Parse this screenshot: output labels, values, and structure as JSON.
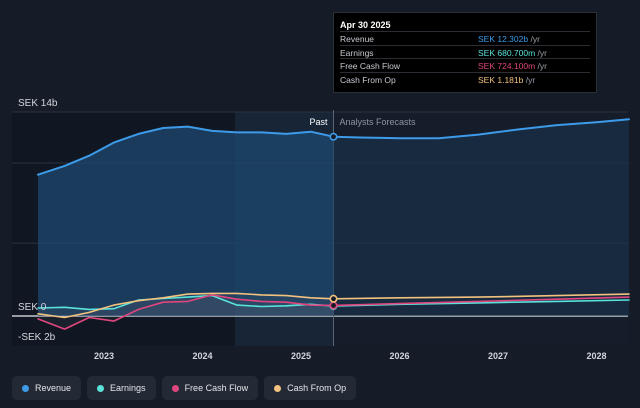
{
  "chart_data": {
    "type": "line",
    "y_axis_top_label": "SEK 14b",
    "y_axis_zero_label": "SEK 0",
    "y_axis_bottom_label": "-SEK 2b",
    "ylim": [
      -2,
      14
    ],
    "x_ticks": [
      "2023",
      "2024",
      "2025",
      "2026",
      "2027",
      "2028"
    ],
    "past_label": "Past",
    "forecast_label": "Analysts Forecasts",
    "divider_date": 2025.33,
    "highlight_start": 2024.33,
    "series": [
      {
        "name": "Revenue",
        "color": "#3d9be9",
        "x": [
          2022.33,
          2022.6,
          2022.85,
          2023.1,
          2023.35,
          2023.6,
          2023.85,
          2024.1,
          2024.35,
          2024.6,
          2024.85,
          2025.1,
          2025.33
        ],
        "y": [
          9.7,
          10.3,
          11.0,
          11.9,
          12.5,
          12.9,
          13.0,
          12.7,
          12.6,
          12.6,
          12.5,
          12.65,
          12.302
        ]
      },
      {
        "name": "Revenue forecast",
        "color": "#3d9be9",
        "forecast": true,
        "x": [
          2025.33,
          2025.6,
          2026.0,
          2026.4,
          2026.8,
          2027.2,
          2027.6,
          2028.0,
          2028.33
        ],
        "y": [
          12.302,
          12.25,
          12.2,
          12.2,
          12.45,
          12.8,
          13.1,
          13.3,
          13.5
        ]
      },
      {
        "name": "Earnings",
        "color": "#5ae3da",
        "x": [
          2022.33,
          2022.6,
          2022.85,
          2023.1,
          2023.35,
          2023.6,
          2023.85,
          2024.1,
          2024.35,
          2024.6,
          2024.85,
          2025.1,
          2025.33
        ],
        "y": [
          0.55,
          0.6,
          0.45,
          0.5,
          1.1,
          1.2,
          1.3,
          1.4,
          0.75,
          0.65,
          0.7,
          0.8,
          0.6807
        ]
      },
      {
        "name": "Earnings forecast",
        "color": "#5ae3da",
        "forecast": true,
        "x": [
          2025.33,
          2026.0,
          2026.8,
          2027.6,
          2028.33
        ],
        "y": [
          0.6807,
          0.8,
          0.9,
          1.0,
          1.1
        ]
      },
      {
        "name": "Free Cash Flow",
        "color": "#e0467e",
        "x": [
          2022.33,
          2022.6,
          2022.85,
          2023.1,
          2023.35,
          2023.6,
          2023.85,
          2024.1,
          2024.35,
          2024.6,
          2024.85,
          2025.1,
          2025.33
        ],
        "y": [
          -0.2,
          -0.9,
          -0.1,
          -0.35,
          0.45,
          0.95,
          1.0,
          1.45,
          1.15,
          1.0,
          0.95,
          0.75,
          0.7241
        ]
      },
      {
        "name": "Free Cash Flow forecast",
        "color": "#e0467e",
        "forecast": true,
        "x": [
          2025.33,
          2026.0,
          2026.8,
          2027.6,
          2028.33
        ],
        "y": [
          0.7241,
          0.85,
          1.0,
          1.15,
          1.3
        ]
      },
      {
        "name": "Cash From Op",
        "color": "#f2c27e",
        "x": [
          2022.33,
          2022.6,
          2022.85,
          2023.1,
          2023.35,
          2023.6,
          2023.85,
          2024.1,
          2024.35,
          2024.6,
          2024.85,
          2025.1,
          2025.33
        ],
        "y": [
          0.15,
          -0.1,
          0.25,
          0.75,
          1.05,
          1.25,
          1.5,
          1.55,
          1.55,
          1.45,
          1.4,
          1.25,
          1.181
        ]
      },
      {
        "name": "Cash From Op forecast",
        "color": "#f2c27e",
        "forecast": true,
        "x": [
          2025.33,
          2026.0,
          2026.8,
          2027.6,
          2028.33
        ],
        "y": [
          1.181,
          1.25,
          1.3,
          1.4,
          1.5
        ]
      }
    ]
  },
  "tooltip": {
    "date": "Apr 30 2025",
    "rows": [
      {
        "name": "Revenue",
        "value": "SEK 12.302b",
        "unit": "/yr",
        "color": "#3d9be9"
      },
      {
        "name": "Earnings",
        "value": "SEK 680.700m",
        "unit": "/yr",
        "color": "#5ae3da"
      },
      {
        "name": "Free Cash Flow",
        "value": "SEK 724.100m",
        "unit": "/yr",
        "color": "#e0467e"
      },
      {
        "name": "Cash From Op",
        "value": "SEK 1.181b",
        "unit": "/yr",
        "color": "#f2c27e"
      }
    ]
  },
  "legend": [
    {
      "label": "Revenue",
      "color": "#3d9be9"
    },
    {
      "label": "Earnings",
      "color": "#5ae3da"
    },
    {
      "label": "Free Cash Flow",
      "color": "#e0467e"
    },
    {
      "label": "Cash From Op",
      "color": "#f2c27e"
    }
  ]
}
